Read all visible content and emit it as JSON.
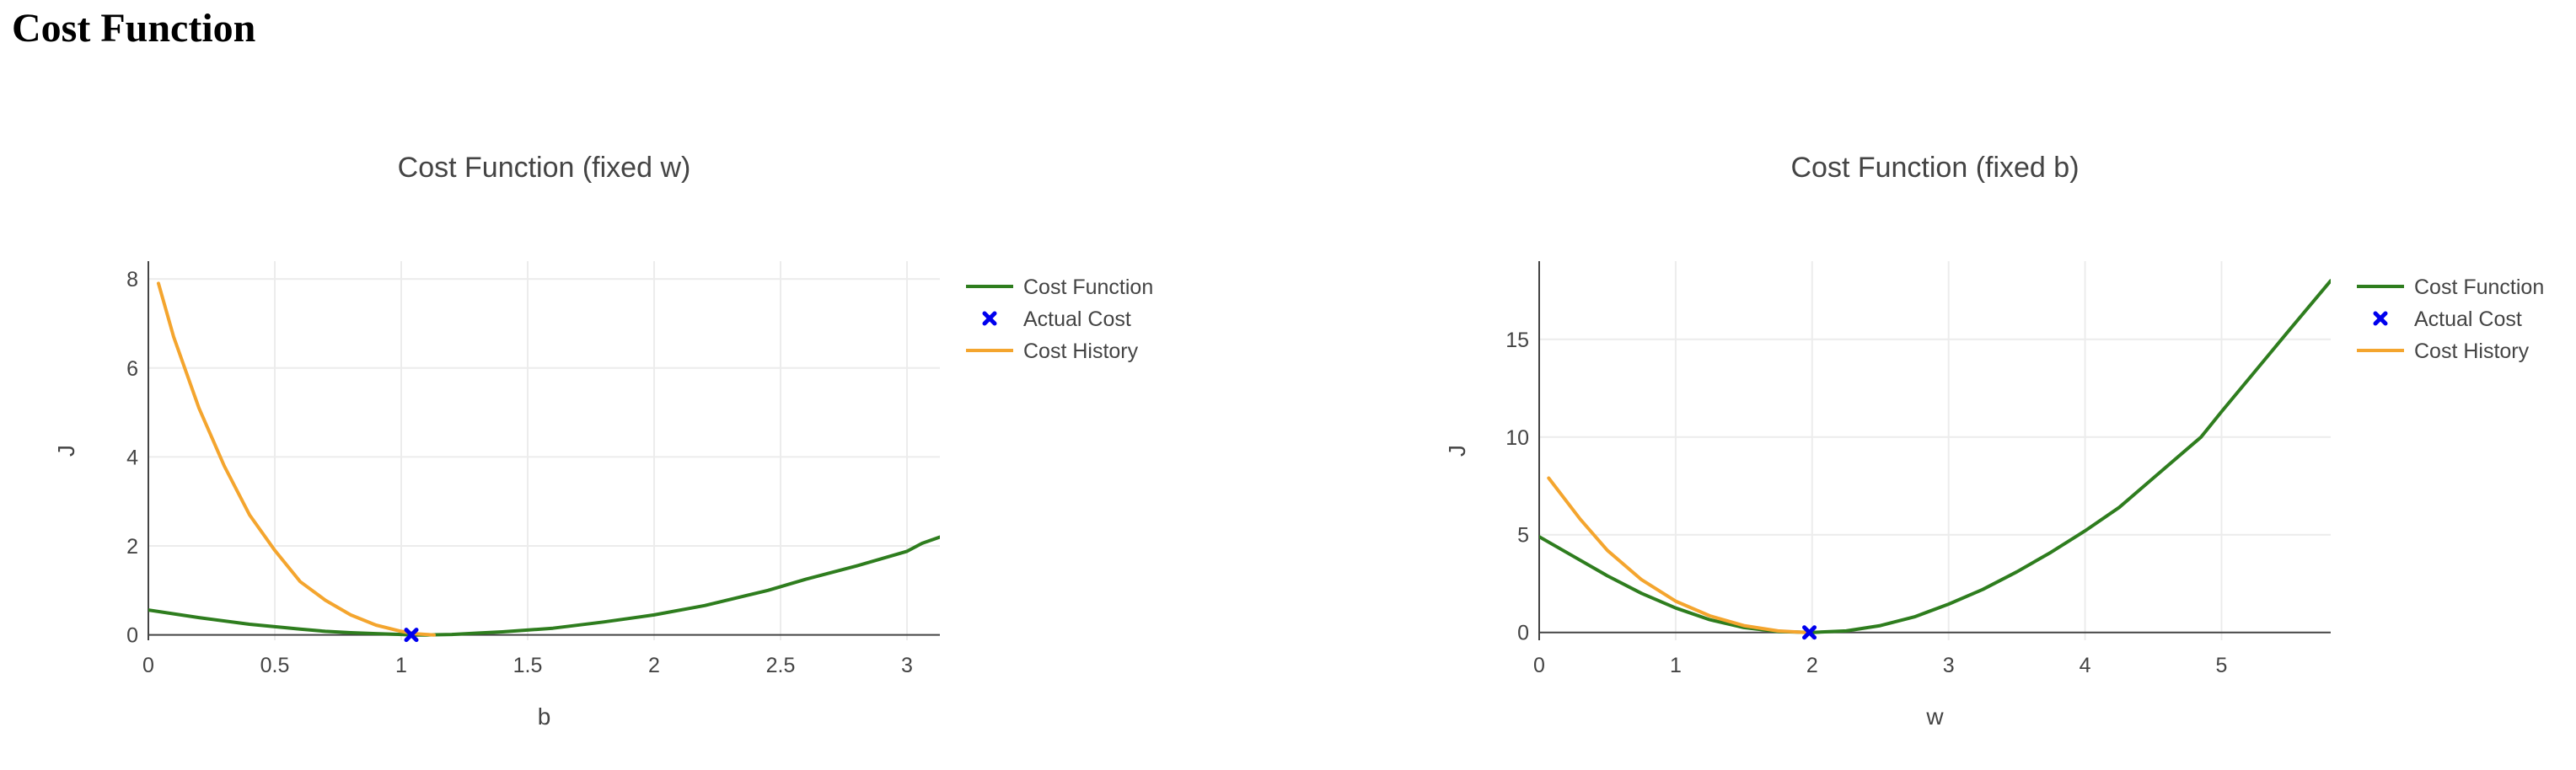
{
  "page": {
    "title": "Cost Function"
  },
  "colors": {
    "cost_function": "#2e7d1e",
    "actual_cost": "#0000ee",
    "cost_history": "#f4a52e",
    "grid": "#ececec",
    "axis": "#444444"
  },
  "chart_data": [
    {
      "type": "line",
      "title": "Cost Function (fixed w)",
      "xlabel": "b",
      "ylabel": "J",
      "xlim": [
        0,
        3.13
      ],
      "ylim": [
        -0.12,
        8.4
      ],
      "xticks": [
        0,
        0.5,
        1,
        1.5,
        2,
        2.5,
        3
      ],
      "xtick_labels": [
        "0",
        "0.5",
        "1",
        "1.5",
        "2",
        "2.5",
        "3"
      ],
      "yticks": [
        0,
        2,
        4,
        6,
        8
      ],
      "ytick_labels": [
        "0",
        "2",
        "4",
        "6",
        "8"
      ],
      "grid": true,
      "legend_position": "right",
      "series": [
        {
          "name": "Cost Function",
          "kind": "line",
          "color": "#2e7d1e",
          "x": [
            0,
            0.2,
            0.4,
            0.6,
            0.7,
            0.8,
            0.9,
            1.0,
            1.05,
            1.1,
            1.2,
            1.3,
            1.4,
            1.6,
            1.8,
            2.0,
            2.2,
            2.45,
            2.6,
            2.8,
            3.0,
            3.06,
            3.13
          ],
          "y": [
            0.56,
            0.39,
            0.24,
            0.13,
            0.08,
            0.05,
            0.03,
            0.01,
            0.0,
            0.0,
            0.01,
            0.04,
            0.07,
            0.15,
            0.29,
            0.45,
            0.66,
            1.0,
            1.25,
            1.55,
            1.88,
            2.06,
            2.2
          ]
        },
        {
          "name": "Actual Cost",
          "kind": "marker",
          "color": "#0000ee",
          "x": [
            1.04
          ],
          "y": [
            0.0
          ]
        },
        {
          "name": "Cost History",
          "kind": "line",
          "color": "#f4a52e",
          "x": [
            0.04,
            0.1,
            0.2,
            0.3,
            0.4,
            0.5,
            0.6,
            0.7,
            0.8,
            0.9,
            1.0,
            1.05,
            1.1,
            1.13
          ],
          "y": [
            7.9,
            6.7,
            5.1,
            3.8,
            2.7,
            1.9,
            1.2,
            0.78,
            0.45,
            0.22,
            0.08,
            0.03,
            0.01,
            0.0
          ]
        }
      ]
    },
    {
      "type": "line",
      "title": "Cost Function (fixed b)",
      "xlabel": "w",
      "ylabel": "J",
      "xlim": [
        0,
        5.8
      ],
      "ylim": [
        -0.4,
        19.0
      ],
      "xticks": [
        0,
        1,
        2,
        3,
        4,
        5
      ],
      "xtick_labels": [
        "0",
        "1",
        "2",
        "3",
        "4",
        "5"
      ],
      "yticks": [
        0,
        5,
        10,
        15
      ],
      "ytick_labels": [
        "0",
        "5",
        "10",
        "15"
      ],
      "grid": true,
      "legend_position": "right",
      "series": [
        {
          "name": "Cost Function",
          "kind": "line",
          "color": "#2e7d1e",
          "x": [
            0,
            0.25,
            0.5,
            0.75,
            1.0,
            1.25,
            1.5,
            1.75,
            2.0,
            2.25,
            2.5,
            2.75,
            3.0,
            3.25,
            3.5,
            3.75,
            4.0,
            4.25,
            4.5,
            4.75,
            4.85,
            5.0,
            5.25,
            5.5,
            5.8
          ],
          "y": [
            4.9,
            3.9,
            2.9,
            2.0,
            1.25,
            0.65,
            0.25,
            0.05,
            0.0,
            0.08,
            0.35,
            0.8,
            1.45,
            2.2,
            3.1,
            4.1,
            5.2,
            6.4,
            7.9,
            9.4,
            10.0,
            11.3,
            13.4,
            15.5,
            18.0
          ]
        },
        {
          "name": "Actual Cost",
          "kind": "marker",
          "color": "#0000ee",
          "x": [
            1.98
          ],
          "y": [
            0.0
          ]
        },
        {
          "name": "Cost History",
          "kind": "line",
          "color": "#f4a52e",
          "x": [
            0.07,
            0.3,
            0.5,
            0.75,
            1.0,
            1.25,
            1.5,
            1.75,
            1.95
          ],
          "y": [
            7.9,
            5.8,
            4.2,
            2.7,
            1.6,
            0.85,
            0.35,
            0.08,
            0.0
          ]
        }
      ]
    }
  ]
}
